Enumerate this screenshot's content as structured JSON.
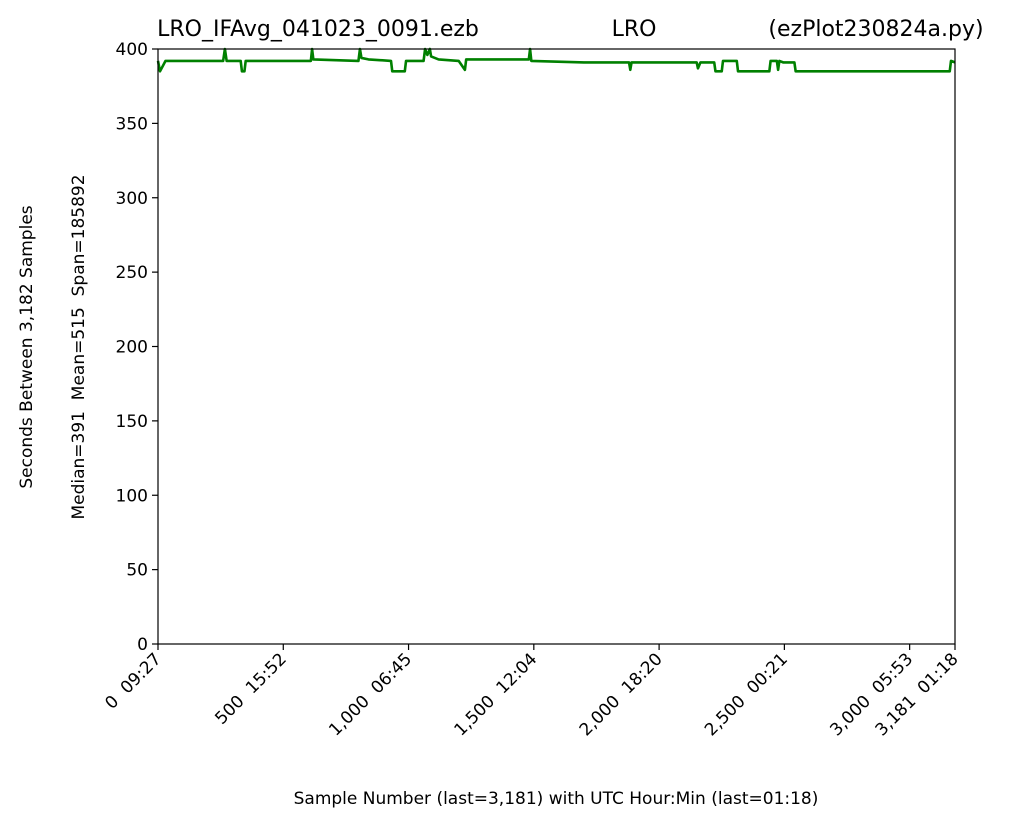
{
  "chart_data": {
    "type": "line",
    "titles": [
      "LRO_IFAvg_041023_0091.ezb",
      "LRO",
      "(ezPlot230824a.py)"
    ],
    "x_label": "Sample Number (last=3,181) with UTC Hour:Min (last=01:18)",
    "y_labels": [
      "Seconds Between 3,182 Samples",
      "Median=391  Mean=515  Span=185892"
    ],
    "color": "#008000",
    "x": [
      0,
      8,
      30,
      260,
      267,
      274,
      330,
      335,
      345,
      350,
      610,
      615,
      620,
      800,
      806,
      812,
      840,
      930,
      935,
      985,
      990,
      1060,
      1066,
      1075,
      1085,
      1090,
      1120,
      1200,
      1225,
      1230,
      1400,
      1480,
      1485,
      1490,
      1700,
      1880,
      1885,
      1890,
      2150,
      2155,
      2165,
      2220,
      2225,
      2250,
      2255,
      2310,
      2315,
      2440,
      2445,
      2470,
      2475,
      2480,
      2495,
      2540,
      2545,
      3160,
      3165,
      3181
    ],
    "values": [
      392,
      385,
      392,
      392,
      400,
      392,
      392,
      385,
      385,
      392,
      392,
      400,
      393,
      392,
      400,
      394,
      393,
      392,
      385,
      385,
      392,
      392,
      400,
      396,
      400,
      395,
      393,
      392,
      386,
      393,
      393,
      393,
      400,
      392,
      391,
      391,
      386,
      391,
      391,
      387,
      391,
      391,
      385,
      385,
      392,
      392,
      385,
      385,
      392,
      392,
      386,
      392,
      391,
      391,
      385,
      385,
      392,
      391
    ],
    "xlim": [
      0,
      3181
    ],
    "ylim": [
      0,
      400
    ],
    "xticks": [
      {
        "value": 0,
        "label": "0  09:27"
      },
      {
        "value": 500,
        "label": "500  15:52"
      },
      {
        "value": 1000,
        "label": "1,000  06:45"
      },
      {
        "value": 1500,
        "label": "1,500  12:04"
      },
      {
        "value": 2000,
        "label": "2,000  18:20"
      },
      {
        "value": 2500,
        "label": "2,500  00:21"
      },
      {
        "value": 3000,
        "label": "3,000  05:53"
      },
      {
        "value": 3181,
        "label": "3,181  01:18"
      }
    ],
    "yticks": [
      0,
      50,
      100,
      150,
      200,
      250,
      300,
      350,
      400
    ],
    "grid": false
  }
}
